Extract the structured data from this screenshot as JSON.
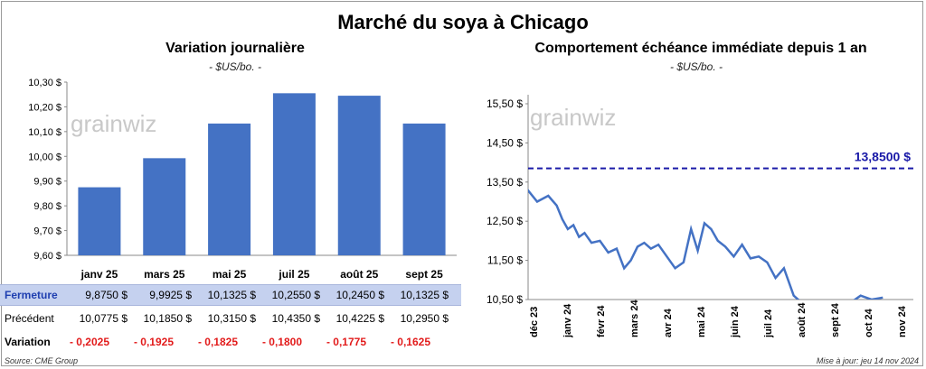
{
  "title": "Marché du soya à Chicago",
  "left_panel": {
    "title": "Variation journalière",
    "subtitle": "- $US/bo. -",
    "watermark": "grainwiz"
  },
  "right_panel": {
    "title": "Comportement échéance immédiate depuis 1 an",
    "subtitle": "- $US/bo. -",
    "watermark": "grainwiz"
  },
  "table": {
    "rows": [
      {
        "label": "Fermeture",
        "values": [
          "9,8750 $",
          "9,9925 $",
          "10,1325 $",
          "10,2550 $",
          "10,2450 $",
          "10,1325 $"
        ]
      },
      {
        "label": "Précédent",
        "values": [
          "10,0775 $",
          "10,1850 $",
          "10,3150 $",
          "10,4350 $",
          "10,4225 $",
          "10,2950 $"
        ]
      },
      {
        "label": "Variation",
        "values": [
          "- 0,2025",
          "- 0,1925",
          "- 0,1825",
          "- 0,1800",
          "- 0,1775",
          "- 0,1625"
        ]
      }
    ]
  },
  "footer": {
    "source": "Source: CME Group",
    "updated": "Mise à jour: jeu 14 nov 2024"
  },
  "colors": {
    "bar": "#4472c4",
    "line": "#4472c4",
    "reference": "#1a1aa8",
    "negative": "#e21b1b"
  },
  "chart_data": [
    {
      "type": "bar",
      "categories": [
        "janv 25",
        "mars 25",
        "mai 25",
        "juil 25",
        "août 25",
        "sept 25"
      ],
      "values": [
        9.875,
        9.9925,
        10.1325,
        10.255,
        10.245,
        10.1325
      ],
      "ylim": [
        9.6,
        10.3
      ],
      "yticks": [
        9.6,
        9.7,
        9.8,
        9.9,
        10.0,
        10.1,
        10.2,
        10.3
      ],
      "ytick_labels": [
        "9,60 $",
        "9,70 $",
        "9,80 $",
        "9,90 $",
        "10,00 $",
        "10,10 $",
        "10,20 $",
        "10,30 $"
      ],
      "grid": false
    },
    {
      "type": "line",
      "x": [
        "déc 23",
        "déc 23",
        "déc 23",
        "janv 24",
        "janv 24",
        "janv 24",
        "janv 24",
        "janv 24",
        "janv 24",
        "févr 24",
        "févr 24",
        "févr 24",
        "févr 24",
        "mars 24",
        "mars 24",
        "mars 24",
        "mars 24",
        "mars 24",
        "avr 24",
        "avr 24",
        "avr 24",
        "avr 24",
        "mai 24",
        "mai 24",
        "mai 24",
        "mai 24",
        "mai 24",
        "juin 24",
        "juin 24",
        "juin 24",
        "juin 24",
        "juil 24",
        "juil 24",
        "juil 24",
        "juil 24",
        "août 24",
        "août 24",
        "août 24",
        "sept 24",
        "sept 24",
        "oct 24",
        "oct 24",
        "oct 24"
      ],
      "y": [
        13.35,
        13.0,
        13.15,
        12.9,
        12.55,
        12.3,
        12.4,
        12.1,
        12.2,
        11.95,
        12.0,
        11.7,
        11.8,
        11.3,
        11.5,
        11.85,
        11.95,
        11.8,
        11.9,
        11.6,
        11.3,
        11.45,
        12.3,
        11.75,
        12.45,
        12.3,
        12.0,
        11.85,
        11.6,
        11.9,
        11.55,
        11.6,
        11.45,
        11.05,
        11.3,
        10.6,
        10.35,
        10.4,
        10.3,
        10.35,
        10.6,
        10.5,
        10.55
      ],
      "ylim": [
        10.5,
        15.5
      ],
      "yticks": [
        10.5,
        11.5,
        12.5,
        13.5,
        14.5,
        15.5
      ],
      "ytick_labels": [
        "10,50 $",
        "11,50 $",
        "12,50 $",
        "13,50 $",
        "14,50 $",
        "15,50 $"
      ],
      "xtick_labels": [
        "déc 23",
        "janv 24",
        "févr 24",
        "mars 24",
        "avr 24",
        "mai 24",
        "juin 24",
        "juil 24",
        "août 24",
        "sept 24",
        "oct 24",
        "nov 24"
      ],
      "reference_value": 13.85,
      "reference_label": "13,8500 $",
      "grid": false
    }
  ]
}
